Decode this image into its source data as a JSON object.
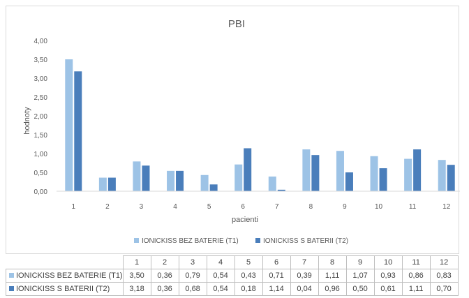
{
  "chart_data": {
    "type": "bar",
    "title": "PBI",
    "xlabel": "pacienti",
    "ylabel": "hodnoty",
    "ylim": [
      0,
      4
    ],
    "yticks": [
      "0,00",
      "0,50",
      "1,00",
      "1,50",
      "2,00",
      "2,50",
      "3,00",
      "3,50",
      "4,00"
    ],
    "categories": [
      "1",
      "2",
      "3",
      "4",
      "5",
      "6",
      "7",
      "8",
      "9",
      "10",
      "11",
      "12"
    ],
    "grid": false,
    "legend": "bottom",
    "series": [
      {
        "name": "IONICKISS BEZ BATERIE (T1)",
        "color": "#9dc3e6",
        "values": [
          3.5,
          0.36,
          0.79,
          0.54,
          0.43,
          0.71,
          0.39,
          1.11,
          1.07,
          0.93,
          0.86,
          0.83
        ],
        "labels": [
          "3,50",
          "0,36",
          "0,79",
          "0,54",
          "0,43",
          "0,71",
          "0,39",
          "1,11",
          "1,07",
          "0,93",
          "0,86",
          "0,83"
        ]
      },
      {
        "name": "IONICKISS S BATERII (T2)",
        "color": "#4a7ebb",
        "values": [
          3.18,
          0.36,
          0.68,
          0.54,
          0.18,
          1.14,
          0.04,
          0.96,
          0.5,
          0.61,
          1.11,
          0.7
        ],
        "labels": [
          "3,18",
          "0,36",
          "0,68",
          "0,54",
          "0,18",
          "1,14",
          "0,04",
          "0,96",
          "0,50",
          "0,61",
          "1,11",
          "0,70"
        ]
      }
    ]
  }
}
